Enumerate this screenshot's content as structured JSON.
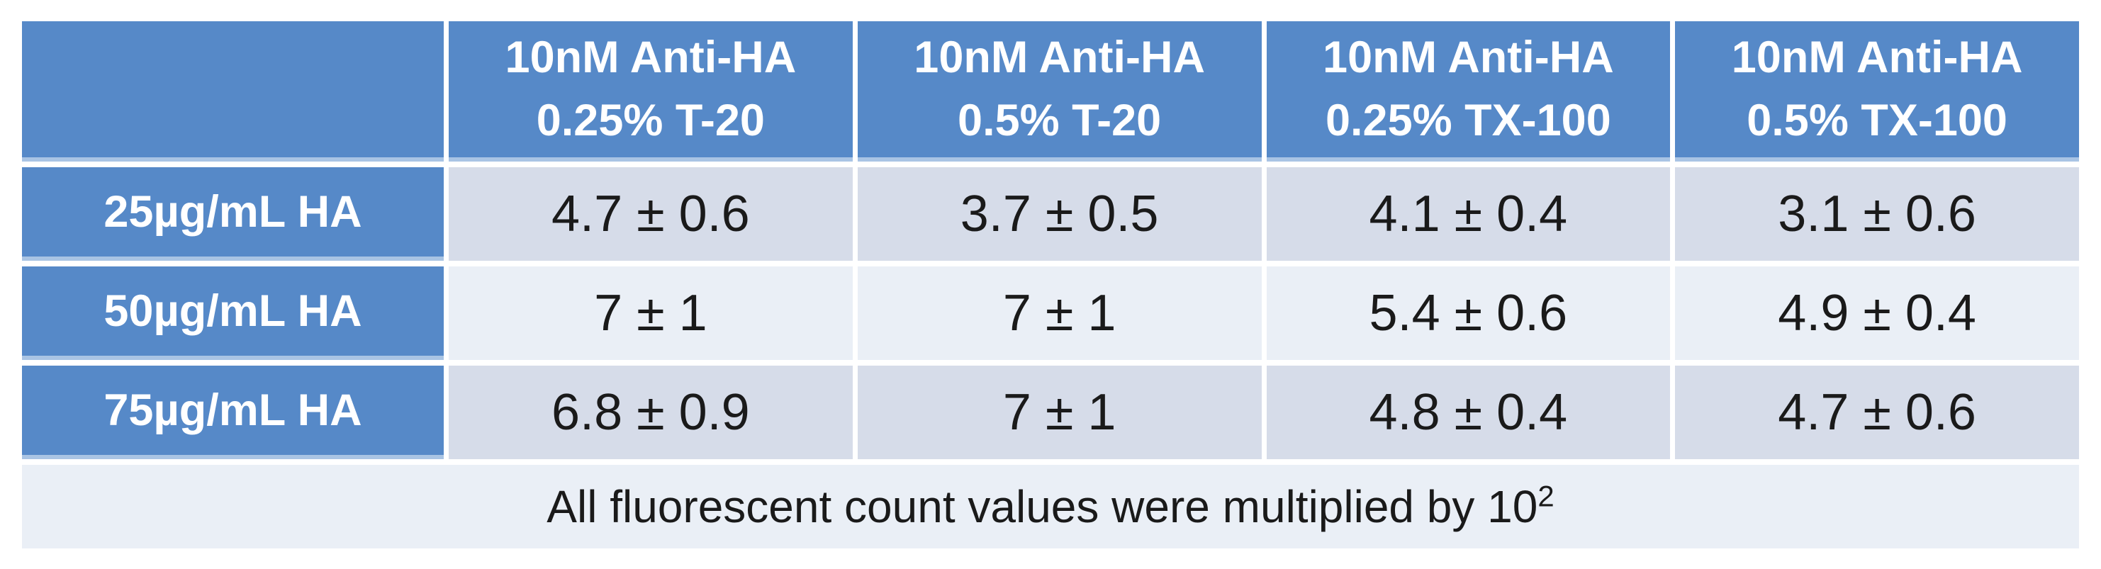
{
  "table": {
    "corner_label": "",
    "column_headers": [
      {
        "line1": "10nM Anti-HA",
        "line2": "0.25% T-20"
      },
      {
        "line1": "10nM Anti-HA",
        "line2": "0.5% T-20"
      },
      {
        "line1": "10nM Anti-HA",
        "line2": "0.25% TX-100"
      },
      {
        "line1": "10nM Anti-HA",
        "line2": "0.5% TX-100"
      }
    ],
    "rows": [
      {
        "label": "25µg/mL HA",
        "values": [
          "4.7 ± 0.6",
          "3.7 ± 0.5",
          "4.1 ± 0.4",
          "3.1 ± 0.6"
        ]
      },
      {
        "label": "50µg/mL HA",
        "values": [
          "7 ± 1",
          "7 ± 1",
          "5.4 ± 0.6",
          "4.9 ± 0.4"
        ]
      },
      {
        "label": "75µg/mL HA",
        "values": [
          "6.8 ± 0.9",
          "7 ± 1",
          "4.8 ± 0.4",
          "4.7 ± 0.6"
        ]
      }
    ],
    "footnote": {
      "text": "All fluorescent count values were multiplied by 10",
      "superscript": "2"
    }
  },
  "chart_data": {
    "type": "table",
    "columns": [
      "",
      "10nM Anti-HA 0.25% T-20",
      "10nM Anti-HA 0.5% T-20",
      "10nM Anti-HA 0.25% TX-100",
      "10nM Anti-HA 0.5% TX-100"
    ],
    "row_labels": [
      "25µg/mL HA",
      "50µg/mL HA",
      "75µg/mL HA"
    ],
    "series": [
      {
        "name": "25µg/mL HA",
        "values": [
          4.7,
          3.7,
          4.1,
          3.1
        ],
        "errors": [
          0.6,
          0.5,
          0.4,
          0.6
        ]
      },
      {
        "name": "50µg/mL HA",
        "values": [
          7,
          7,
          5.4,
          4.9
        ],
        "errors": [
          1,
          1,
          0.6,
          0.4
        ]
      },
      {
        "name": "75µg/mL HA",
        "values": [
          6.8,
          7,
          4.8,
          4.7
        ],
        "errors": [
          0.9,
          1,
          0.4,
          0.6
        ]
      }
    ],
    "footnote": "All fluorescent count values were multiplied by 10^2"
  },
  "colors": {
    "header_blue": "#5689C8",
    "blue_bevel": "#A9C4E4",
    "band_dark": "#D6DCE9",
    "band_light": "#EAEFF6",
    "header_text": "#FFFFFF",
    "body_text": "#1A1A1A"
  }
}
